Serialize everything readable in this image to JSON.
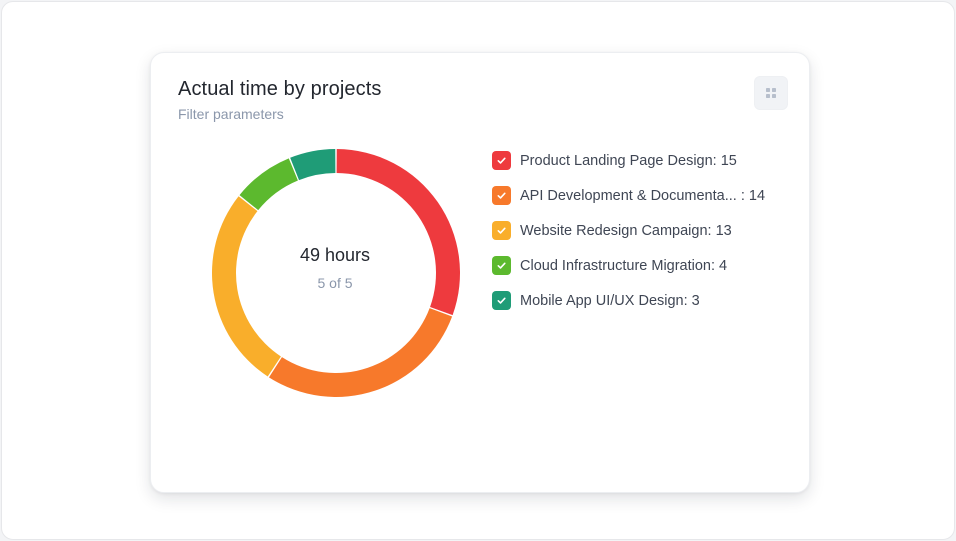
{
  "card": {
    "title": "Actual time by projects",
    "subtitle": "Filter parameters",
    "menu_icon": "grid-icon"
  },
  "chart_data": {
    "type": "pie",
    "style": "donut",
    "title": "Actual time by projects",
    "unit": "hours",
    "categories": [
      "Product Landing Page Design",
      "API Development & Documenta...",
      "Website Redesign Campaign",
      "Cloud Infrastructure Migration",
      "Mobile App UI/UX Design"
    ],
    "values": [
      15,
      14,
      13,
      4,
      3
    ],
    "colors": [
      "#ee3a3e",
      "#f7792b",
      "#f9ae2b",
      "#5cb92e",
      "#1f9c77"
    ],
    "legend_placement": "right",
    "center": {
      "value": "49 hours",
      "sub": "5 of 5"
    }
  },
  "legend": {
    "items": [
      {
        "label": "Product Landing Page Design: 15",
        "checked": true,
        "color": "#ee3a3e"
      },
      {
        "label": "API Development & Documenta... : 14",
        "checked": true,
        "color": "#f7792b"
      },
      {
        "label": "Website Redesign Campaign: 13",
        "checked": true,
        "color": "#f9ae2b"
      },
      {
        "label": "Cloud Infrastructure Migration: 4",
        "checked": true,
        "color": "#5cb92e"
      },
      {
        "label": "Mobile App UI/UX Design: 3",
        "checked": true,
        "color": "#1f9c77"
      }
    ]
  }
}
